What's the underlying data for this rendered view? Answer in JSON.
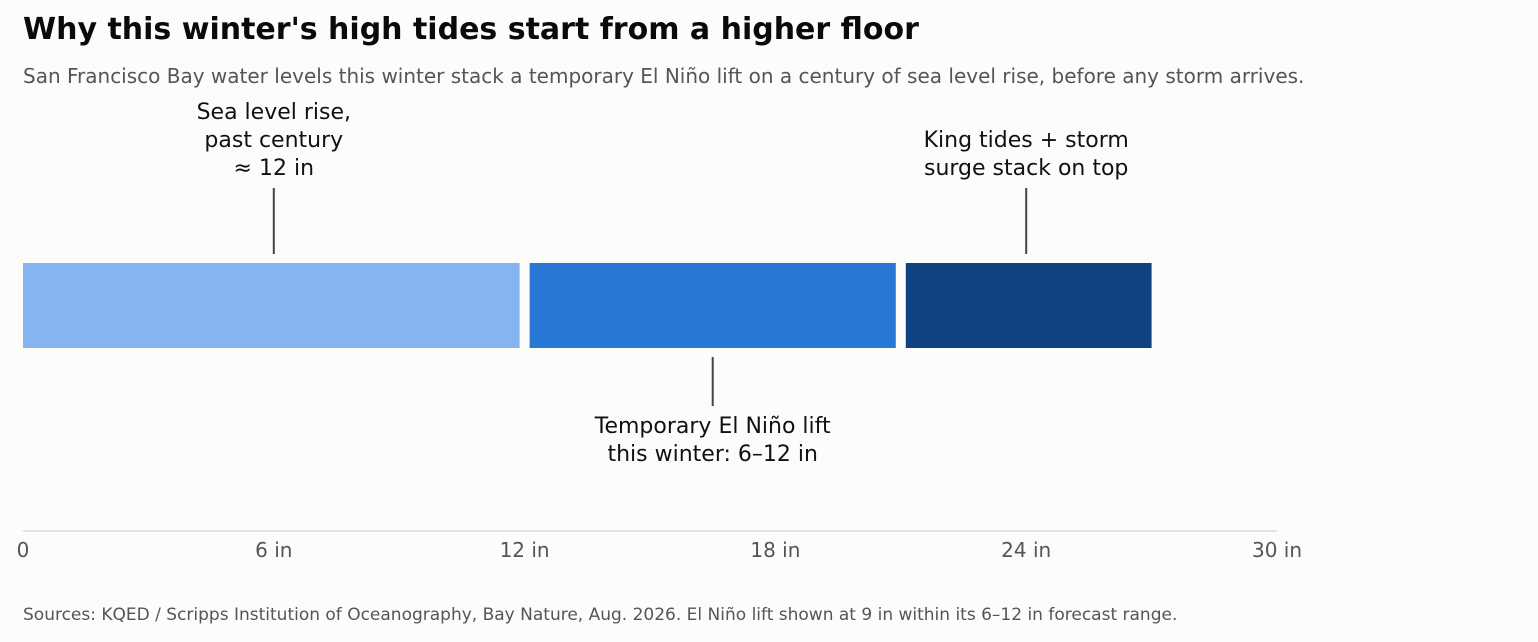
{
  "title": "Why this winter's high tides start from a higher floor",
  "subtitle": "San Francisco Bay water levels this winter stack a temporary El Niño lift on a century of sea level rise, before any storm arrives.",
  "footer": "Sources: KQED / Scripps Institution of Oceanography, Bay Nature, Aug. 2026. El Niño lift shown at 9 in within its 6–12 in forecast range.",
  "chart_data": {
    "type": "bar",
    "orientation": "horizontal-stacked",
    "unit": "in",
    "xlim": [
      0,
      30
    ],
    "ticks": [
      {
        "value": 0,
        "label": "0"
      },
      {
        "value": 6,
        "label": "6 in"
      },
      {
        "value": 12,
        "label": "12 in"
      },
      {
        "value": 18,
        "label": "18 in"
      },
      {
        "value": 24,
        "label": "24 in"
      },
      {
        "value": 30,
        "label": "30 in"
      }
    ],
    "grid": false,
    "segments": [
      {
        "start": 0,
        "value": 12,
        "color": "#86b4f0",
        "annotation": [
          "Sea level rise,",
          "past century",
          "≈ 12 in"
        ],
        "annotation_position": "above"
      },
      {
        "start": 12,
        "value": 9,
        "color": "#2a78d6",
        "annotation": [
          "Temporary El Niño lift",
          "this winter: 6–12 in"
        ],
        "annotation_position": "below"
      },
      {
        "start": 21,
        "value": 6,
        "color": "#0f4183",
        "annotation": [
          "King tides + storm",
          "surge stack on top"
        ],
        "annotation_position": "above"
      }
    ]
  }
}
